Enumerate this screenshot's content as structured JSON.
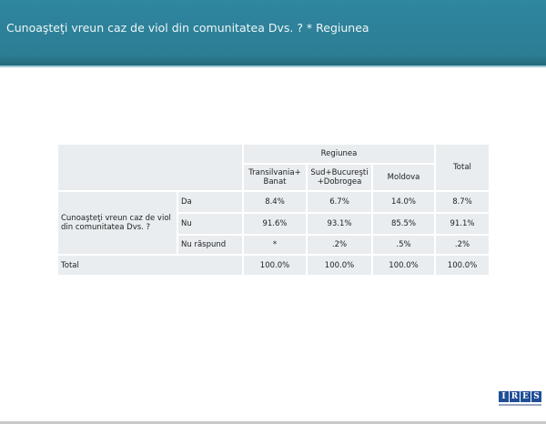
{
  "header": {
    "title": "Cunoaşteţi vreun caz de viol din comunitatea Dvs. ? * Regiunea"
  },
  "table": {
    "group_header": "Regiunea",
    "total_header": "Total",
    "columns": [
      "Transilvania+ Banat",
      "Sud+Bucureşti +Dobrogea",
      "Moldova"
    ],
    "row_label": "Cunoaşteţi vreun caz de viol din comunitatea Dvs. ?",
    "rows": [
      {
        "label": "Da",
        "values": [
          "8.4%",
          "6.7%",
          "14.0%",
          "8.7%"
        ]
      },
      {
        "label": "Nu",
        "values": [
          "91.6%",
          "93.1%",
          "85.5%",
          "91.1%"
        ]
      },
      {
        "label": "Nu răspund",
        "values": [
          "*",
          ".2%",
          ".5%",
          ".2%"
        ]
      }
    ],
    "total_row": {
      "label": "Total",
      "values": [
        "100.0%",
        "100.0%",
        "100.0%",
        "100.0%"
      ]
    }
  },
  "logo": {
    "text": [
      "I",
      "R",
      "E",
      "S"
    ],
    "color": "#1f4e96"
  },
  "colors": {
    "header": "#2b7d93",
    "cell": "#e9edf0"
  }
}
